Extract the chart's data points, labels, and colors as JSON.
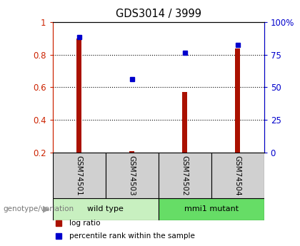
{
  "title": "GDS3014 / 3999",
  "samples": [
    "GSM74501",
    "GSM74503",
    "GSM74502",
    "GSM74504"
  ],
  "log_ratio": [
    0.9,
    0.21,
    0.57,
    0.84
  ],
  "percentile_rank": [
    0.91,
    0.65,
    0.81,
    0.86
  ],
  "ylim": [
    0.2,
    1.0
  ],
  "yticks_left": [
    0.2,
    0.4,
    0.6,
    0.8,
    1.0
  ],
  "yticks_right": [
    0,
    25,
    50,
    75,
    100
  ],
  "ytick_labels_left": [
    "0.2",
    "0.4",
    "0.6",
    "0.8",
    "1"
  ],
  "ytick_labels_right": [
    "0",
    "25",
    "50",
    "75",
    "100%"
  ],
  "bar_color_red": "#aa1100",
  "dot_color_blue": "#0000cc",
  "bg_color": "#ffffff",
  "left_axis_color": "#cc2200",
  "right_axis_color": "#0000cc",
  "wt_color": "#c8f0c0",
  "mut_color": "#66dd66",
  "sample_box_color": "#d0d0d0",
  "legend_items": [
    "log ratio",
    "percentile rank within the sample"
  ],
  "genotype_label": "genotype/variation"
}
